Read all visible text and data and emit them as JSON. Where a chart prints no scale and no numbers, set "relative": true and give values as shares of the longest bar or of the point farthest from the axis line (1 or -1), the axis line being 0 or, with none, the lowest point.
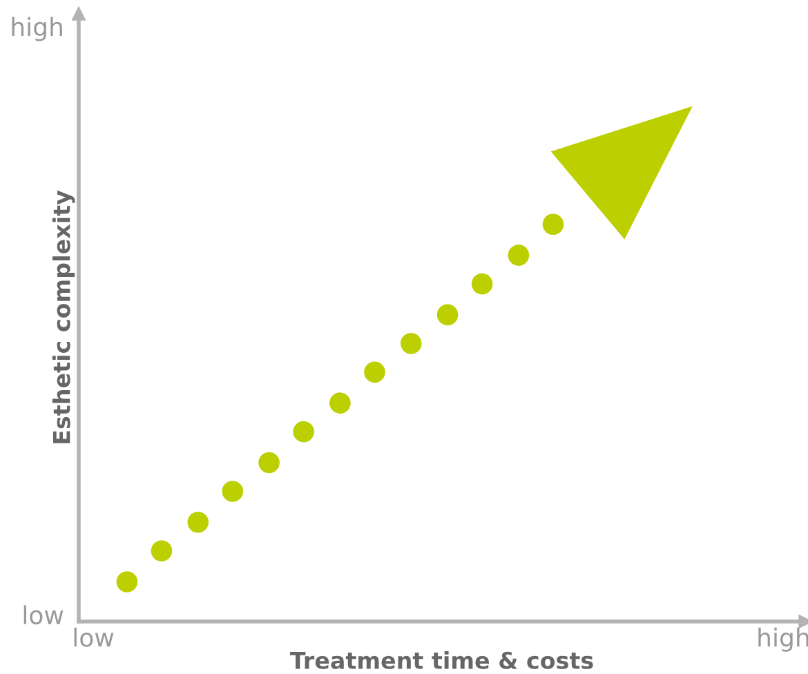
{
  "chart_data": {
    "type": "line",
    "line_style": "dotted",
    "xlabel": "Treatment time & costs",
    "ylabel": "Esthetic complexity",
    "categories": [
      null,
      null,
      null,
      null,
      null,
      null,
      null,
      null,
      null,
      null,
      null,
      null,
      null
    ],
    "series": [
      {
        "color": "#bccf00",
        "values": [
          0.1,
          0.18,
          0.25,
          0.33,
          0.4,
          0.48,
          0.55,
          0.63,
          0.7,
          0.77,
          0.85,
          0.92,
          1
        ]
      }
    ],
    "relative": true,
    "annotations": [
      "low",
      "high",
      "low",
      "high"
    ],
    "grid": false,
    "legend": false
  }
}
